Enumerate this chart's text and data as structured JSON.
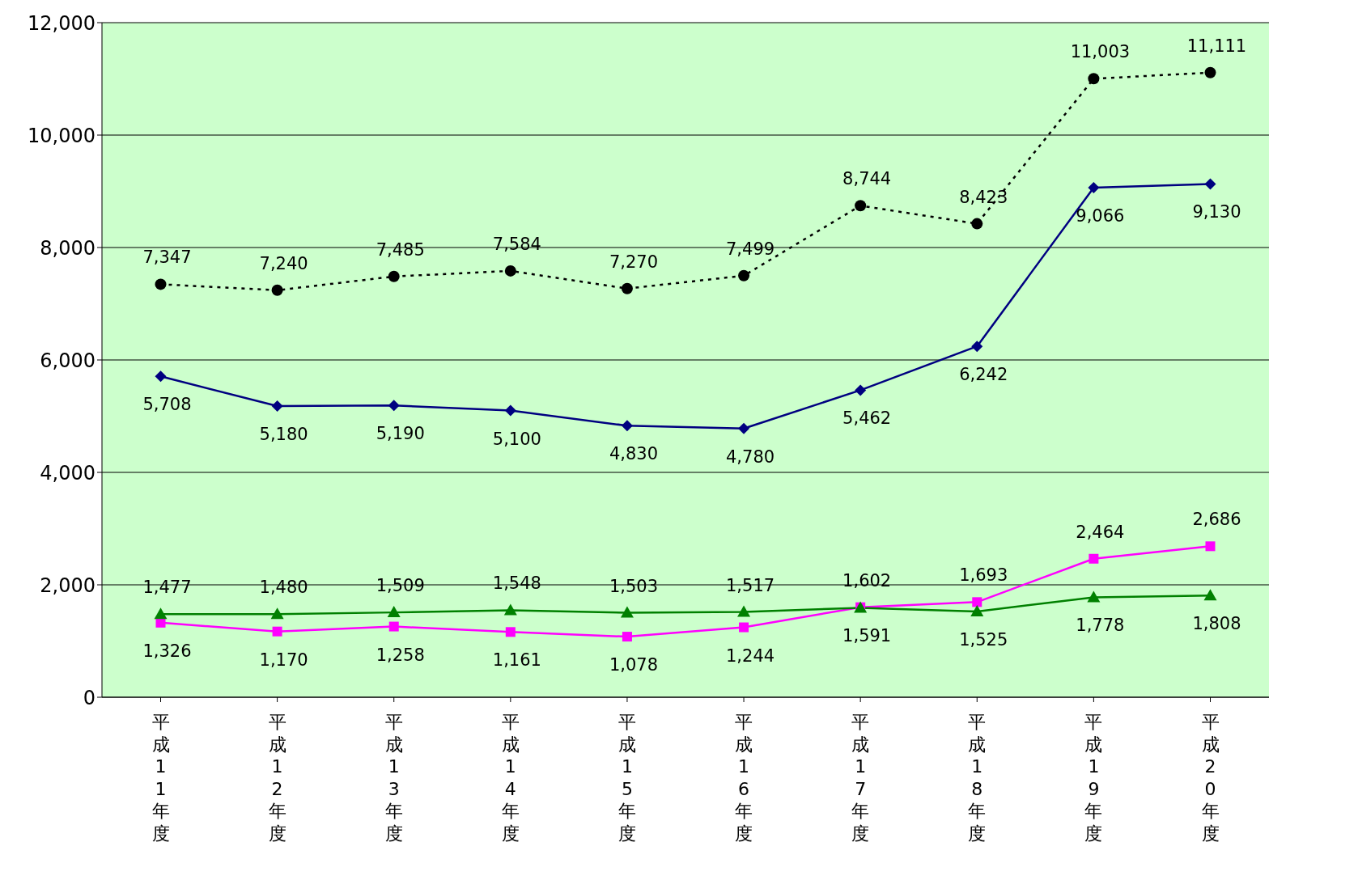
{
  "chart_data": {
    "type": "line",
    "categories": [
      "平成11年度",
      "平成12年度",
      "平成13年度",
      "平成14年度",
      "平成15年度",
      "平成16年度",
      "平成17年度",
      "平成18年度",
      "平成19年度",
      "平成20年度"
    ],
    "series": [
      {
        "color": "#000000",
        "line_style": "dotted",
        "marker": "circle",
        "values": [
          7347,
          7240,
          7485,
          7584,
          7270,
          7499,
          8744,
          8423,
          11003,
          11111
        ],
        "value_labels": [
          "7,347",
          "7,240",
          "7,485",
          "7,584",
          "7,270",
          "7,499",
          "8,744",
          "8,423",
          "11,003",
          "11,111"
        ]
      },
      {
        "color": "#000080",
        "line_style": "solid",
        "marker": "diamond",
        "values": [
          5708,
          5180,
          5190,
          5100,
          4830,
          4780,
          5462,
          6242,
          9066,
          9130
        ],
        "value_labels": [
          "5,708",
          "5,180",
          "5,190",
          "5,100",
          "4,830",
          "4,780",
          "5,462",
          "6,242",
          "9,066",
          "9,130"
        ]
      },
      {
        "color": "#ff00ff",
        "line_style": "solid",
        "marker": "square",
        "values": [
          1326,
          1170,
          1258,
          1161,
          1078,
          1244,
          1602,
          1693,
          2464,
          2686
        ],
        "value_labels": [
          "1,326",
          "1,170",
          "1,258",
          "1,161",
          "1,078",
          "1,244",
          "1,602",
          "1,693",
          "2,464",
          "2,686"
        ]
      },
      {
        "color": "#008000",
        "line_style": "solid",
        "marker": "triangle",
        "values": [
          1477,
          1480,
          1509,
          1548,
          1503,
          1517,
          1591,
          1525,
          1778,
          1808
        ],
        "value_labels": [
          "1,477",
          "1,480",
          "1,509",
          "1,548",
          "1,503",
          "1,517",
          "1,591",
          "1,525",
          "1,778",
          "1,808"
        ]
      }
    ],
    "ylim": [
      0,
      12000
    ],
    "yticks": [
      0,
      {
        "value": 2000,
        "label": "2,000"
      },
      {
        "value": 4000,
        "label": "4,000"
      },
      {
        "value": 6000,
        "label": "6,000"
      },
      {
        "value": 8000,
        "label": "8,000"
      },
      {
        "value": 10000,
        "label": "10,000"
      },
      {
        "value": 12000,
        "label": "12,000"
      }
    ],
    "grid": "y"
  }
}
